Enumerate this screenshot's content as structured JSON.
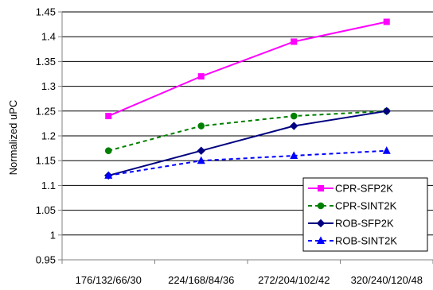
{
  "chart_data": {
    "type": "line",
    "title": "",
    "xlabel": "",
    "ylabel": "Normalized uPC",
    "ylim": [
      0.95,
      1.45
    ],
    "ytick_step": 0.05,
    "grid": true,
    "legend_position": "bottom-right",
    "categories": [
      "176/132/66/30",
      "224/168/84/36",
      "272/204/102/42",
      "320/240/120/48"
    ],
    "series": [
      {
        "name": "CPR-SFP2K",
        "values": [
          1.24,
          1.32,
          1.39,
          1.43
        ],
        "color": "#ff00ff",
        "marker": "square",
        "line": "solid"
      },
      {
        "name": "CPR-SINT2K",
        "values": [
          1.17,
          1.22,
          1.24,
          1.25
        ],
        "color": "#008000",
        "marker": "circle",
        "line": "dashed"
      },
      {
        "name": "ROB-SFP2K",
        "values": [
          1.12,
          1.17,
          1.22,
          1.25
        ],
        "color": "#000080",
        "marker": "diamond",
        "line": "solid"
      },
      {
        "name": "ROB-SINT2K",
        "values": [
          1.12,
          1.15,
          1.16,
          1.17
        ],
        "color": "#0000ff",
        "marker": "triangle",
        "line": "dashed"
      }
    ]
  }
}
